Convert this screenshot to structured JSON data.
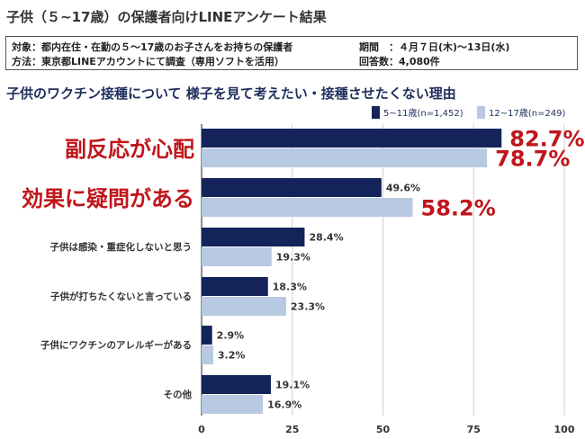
{
  "header": {
    "title": "子供（５~17歳）の保護者向けLINEアンケート結果"
  },
  "info": {
    "line1_left": "対象：都内在住・在勤の５～17歳のお子さんをお持ちの保護者",
    "line1_right": "期間　：４月７日(木)～13日(水)",
    "line2_left": "方法：東京都LINEアカウントにて調査（専用ソフトを活用）",
    "line2_right": "回答数：4,080件"
  },
  "colors": {
    "series1": "#14245a",
    "series2": "#b8c9e2",
    "highlight": "#c0151b"
  },
  "chart_data": {
    "type": "bar",
    "orientation": "horizontal",
    "title": "子供のワクチン接種について 様子を見て考えたい・接種させたくない理由",
    "categories": [
      "副反応が心配",
      "効果に疑問がある",
      "子供は感染・重症化しないと思う",
      "子供が打ちたくないと言っている",
      "子供にワクチンのアレルギーがある",
      "その他"
    ],
    "highlighted_categories": [
      0,
      1
    ],
    "series": [
      {
        "name": "5~11歳(n=1,452)",
        "values": [
          82.7,
          49.6,
          28.4,
          18.3,
          2.9,
          19.1
        ],
        "labels": [
          "82.7%",
          "49.6%",
          "28.4%",
          "18.3%",
          "2.9%",
          "19.1%"
        ]
      },
      {
        "name": "12~17歳(n=249)",
        "values": [
          78.7,
          58.2,
          19.3,
          23.3,
          3.2,
          16.9
        ],
        "labels": [
          "78.7%",
          "58.2%",
          "19.3%",
          "23.3%",
          "3.2%",
          "16.9%"
        ]
      }
    ],
    "xlim": [
      0,
      100
    ],
    "xticks": [
      0,
      25,
      50,
      75,
      100
    ],
    "grid": true,
    "legend_position": "top-right"
  }
}
